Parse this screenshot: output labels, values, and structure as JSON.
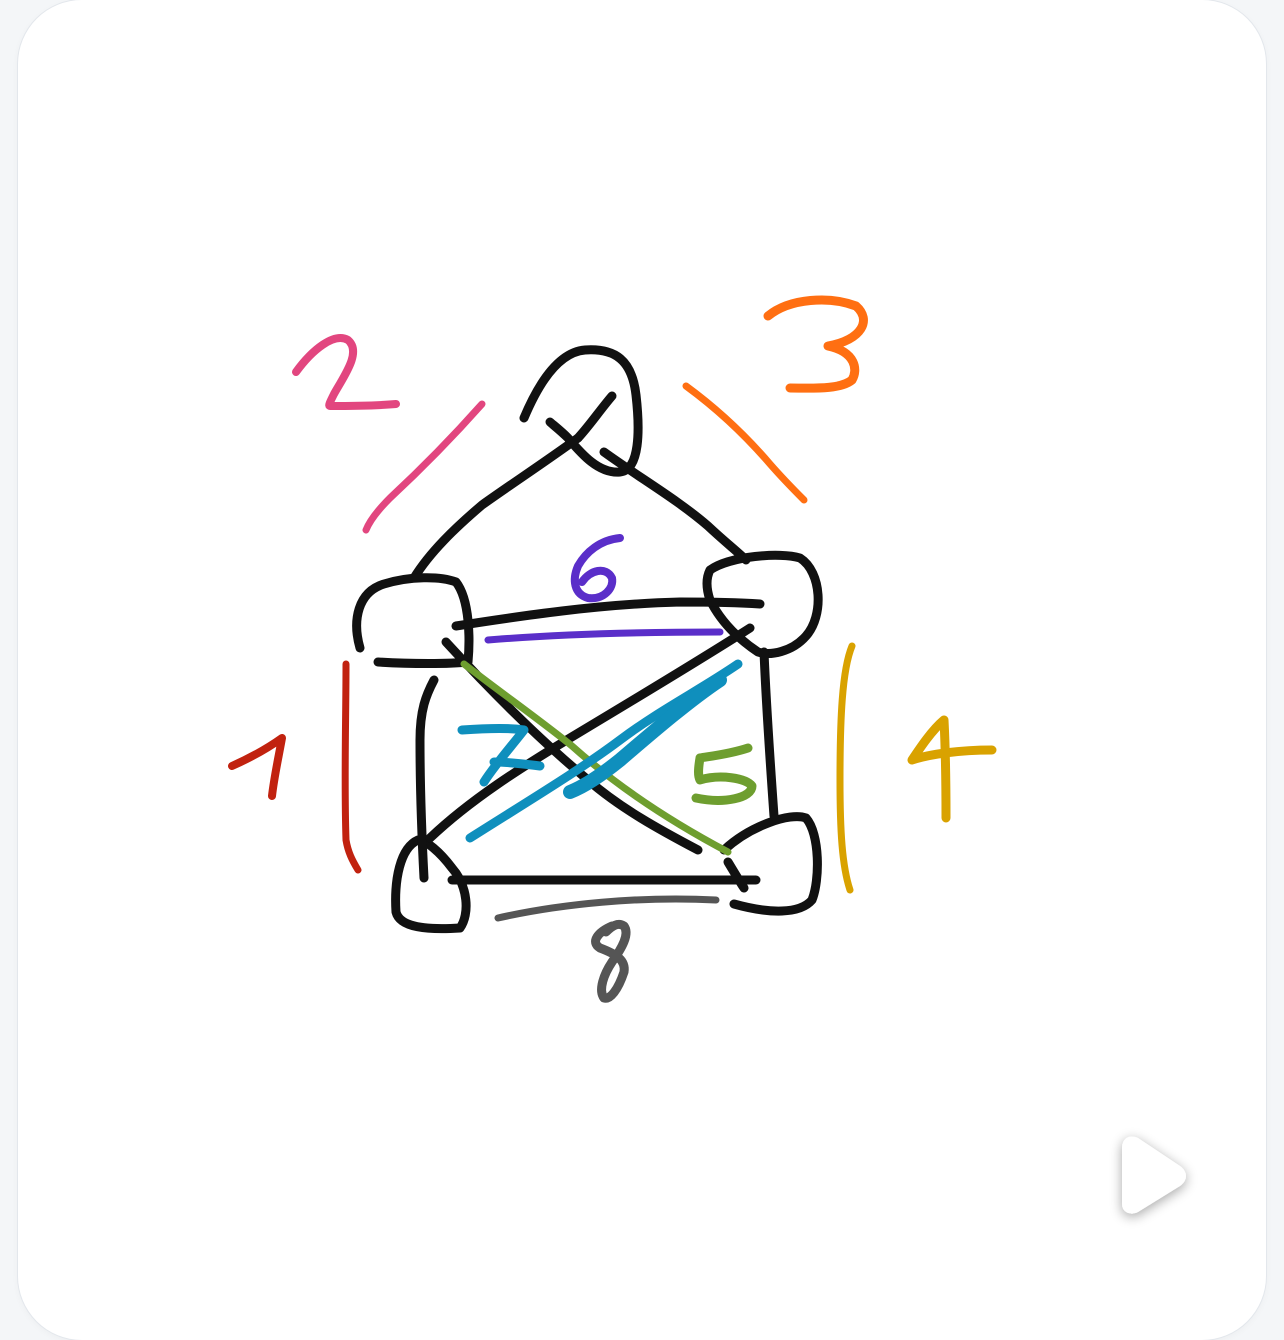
{
  "edges": [
    {
      "label": "1",
      "color": "#c1220f"
    },
    {
      "label": "2",
      "color": "#e2467f"
    },
    {
      "label": "3",
      "color": "#ff6f12"
    },
    {
      "label": "4",
      "color": "#d9a200"
    },
    {
      "label": "5",
      "color": "#6e9e2f"
    },
    {
      "label": "6",
      "color": "#5a2ec9"
    },
    {
      "label": "7",
      "color": "#0f8fbd"
    },
    {
      "label": "8",
      "color": "#555555"
    }
  ],
  "stroke_color": "#111111",
  "play_icon": "play-icon"
}
